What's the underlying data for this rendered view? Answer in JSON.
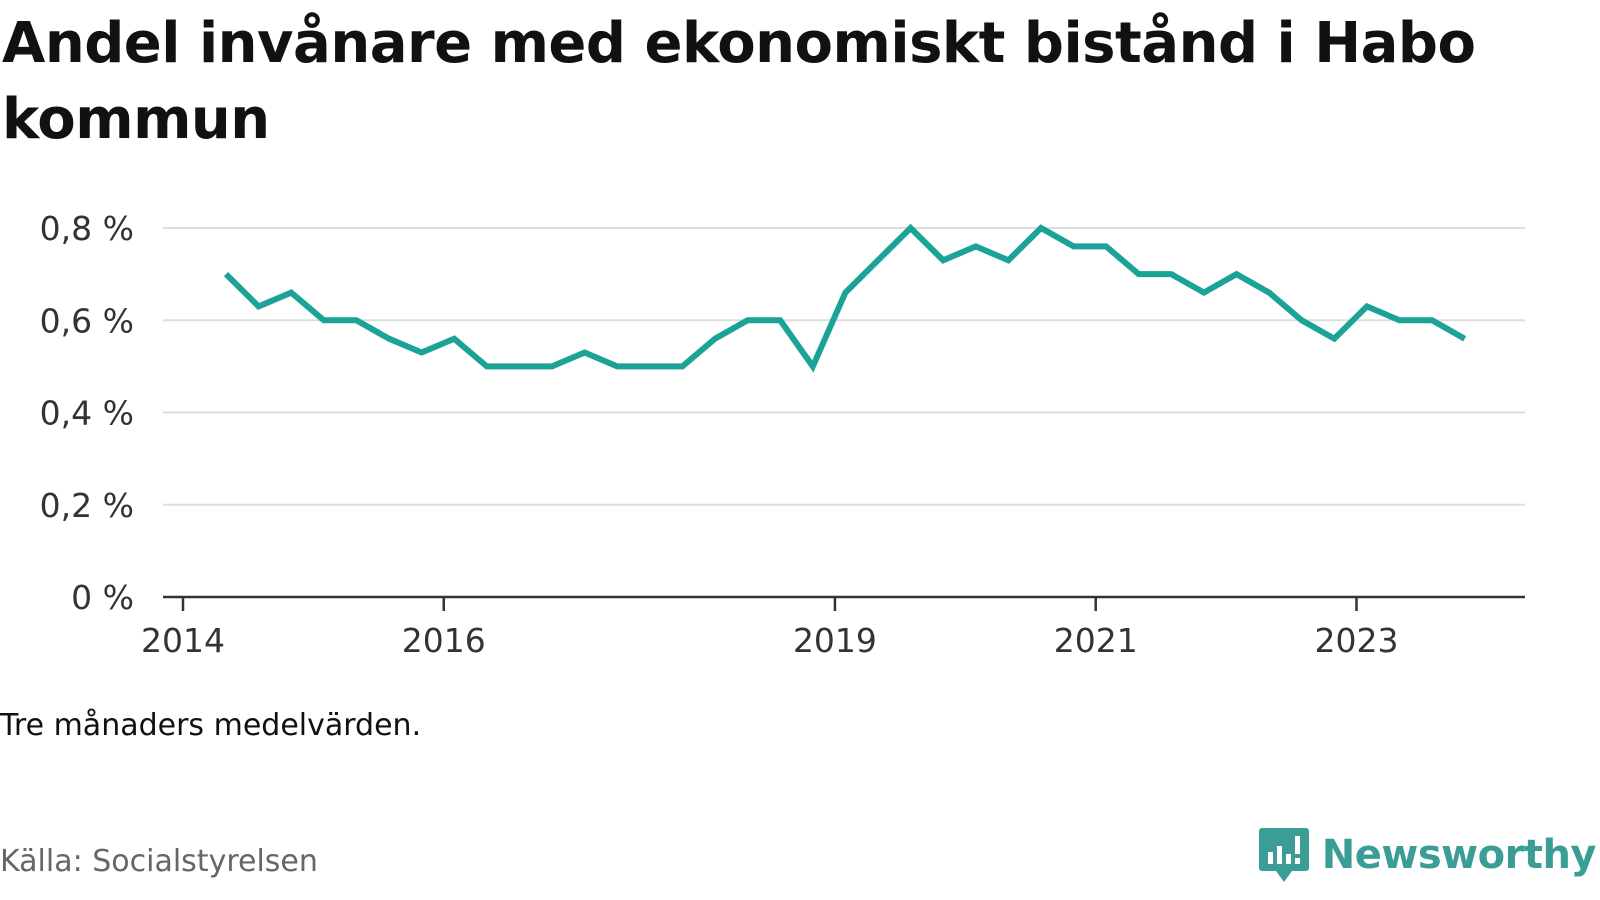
{
  "title": "Andel invånare med ekonomiskt bistånd i Habo kommun",
  "note": "Tre månaders medelvärden.",
  "source": "Källa: Socialstyrelsen",
  "brand": {
    "name": "Newsworthy",
    "icon": "newsworthy-logo-icon",
    "color": "#3a9e96"
  },
  "colors": {
    "line": "#1aa396",
    "grid": "#dddddd",
    "axis": "#333333"
  },
  "chart_data": {
    "type": "line",
    "title": "Andel invånare med ekonomiskt bistånd i Habo kommun",
    "xlabel": "",
    "ylabel": "",
    "ylim": [
      0,
      0.8
    ],
    "xlim": [
      2014.0,
      2024.3
    ],
    "grid": true,
    "legend": "none",
    "y_ticks": [
      0,
      0.2,
      0.4,
      0.6,
      0.8
    ],
    "y_tick_labels": [
      "0 %",
      "0,2 %",
      "0,4 %",
      "0,6 %",
      "0,8 %"
    ],
    "x_ticks": [
      2014,
      2016,
      2019,
      2021,
      2023
    ],
    "x_tick_labels": [
      "2014",
      "2016",
      "2019",
      "2021",
      "2023"
    ],
    "series": [
      {
        "name": "Andel invånare med ekonomiskt bistånd",
        "x": [
          2014.33,
          2014.58,
          2014.83,
          2015.08,
          2015.33,
          2015.58,
          2015.83,
          2016.08,
          2016.33,
          2016.58,
          2016.83,
          2017.08,
          2017.33,
          2017.58,
          2017.83,
          2018.08,
          2018.33,
          2018.58,
          2018.83,
          2019.08,
          2019.33,
          2019.58,
          2019.83,
          2020.08,
          2020.33,
          2020.58,
          2020.83,
          2021.08,
          2021.33,
          2021.58,
          2021.83,
          2022.08,
          2022.33,
          2022.58,
          2022.83,
          2023.08,
          2023.33,
          2023.58,
          2023.83
        ],
        "values": [
          0.7,
          0.63,
          0.66,
          0.6,
          0.6,
          0.56,
          0.53,
          0.56,
          0.5,
          0.5,
          0.5,
          0.53,
          0.5,
          0.5,
          0.5,
          0.56,
          0.6,
          0.6,
          0.5,
          0.66,
          0.73,
          0.8,
          0.73,
          0.76,
          0.73,
          0.8,
          0.76,
          0.76,
          0.7,
          0.7,
          0.66,
          0.7,
          0.66,
          0.6,
          0.56,
          0.63,
          0.6,
          0.6,
          0.56
        ]
      }
    ]
  }
}
